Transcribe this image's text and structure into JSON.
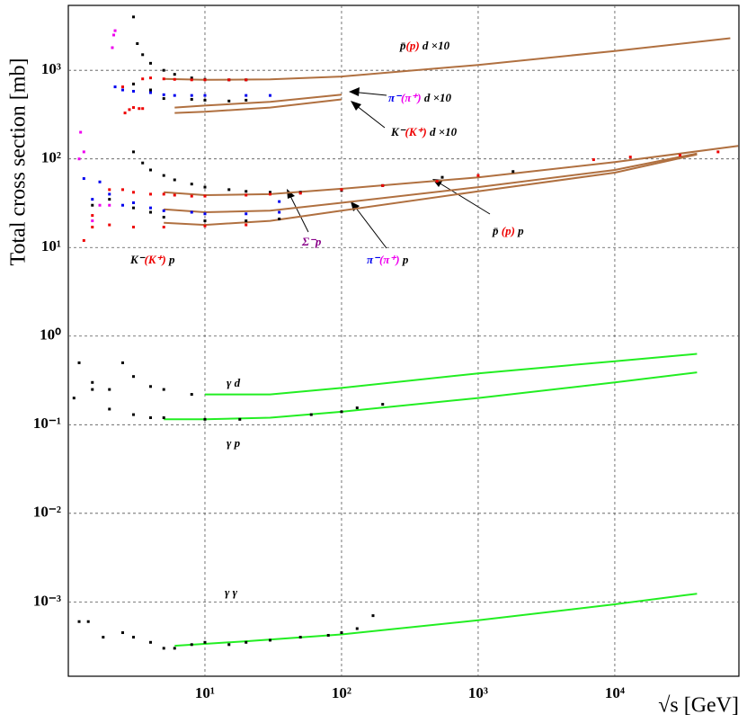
{
  "chart_data": {
    "type": "scatter",
    "x_label": "√s [GeV]",
    "y_label": "Total cross section [mb]",
    "xscale": "log",
    "yscale": "log",
    "grid": true,
    "xlim": [
      1,
      81000
    ],
    "ylim": [
      0.000145,
      5400
    ],
    "xticks": [
      {
        "value": 10,
        "label": "10¹"
      },
      {
        "value": 100,
        "label": "10²"
      },
      {
        "value": 1000,
        "label": "10³"
      },
      {
        "value": 10000,
        "label": "10⁴"
      }
    ],
    "yticks": [
      {
        "value": 0.001,
        "label": "10⁻³"
      },
      {
        "value": 0.01,
        "label": "10⁻²"
      },
      {
        "value": 0.1,
        "label": "10⁻¹"
      },
      {
        "value": 1,
        "label": "10⁰"
      },
      {
        "value": 10,
        "label": "10¹"
      },
      {
        "value": 100,
        "label": "10²"
      },
      {
        "value": 1000,
        "label": "10³"
      }
    ],
    "series": [
      {
        "mode": "line",
        "color": "#b07040",
        "x": [
          5,
          10,
          30,
          100,
          1000,
          10000,
          70000
        ],
        "values": [
          800,
          780,
          790,
          850,
          1150,
          1650,
          2300
        ]
      },
      {
        "mode": "line",
        "color": "#b07040",
        "x": [
          6,
          10,
          30,
          100
        ],
        "values": [
          380,
          400,
          440,
          530
        ]
      },
      {
        "mode": "line",
        "color": "#b07040",
        "x": [
          6,
          10,
          30,
          100
        ],
        "values": [
          330,
          340,
          380,
          470
        ]
      },
      {
        "mode": "line",
        "color": "#b07040",
        "x": [
          5,
          10,
          30,
          100,
          1000,
          10000,
          80000
        ],
        "values": [
          42,
          39,
          40,
          46,
          62,
          92,
          140
        ]
      },
      {
        "mode": "line",
        "color": "#b07040",
        "x": [
          5,
          10,
          30,
          100,
          1000,
          10000,
          40000
        ],
        "values": [
          27,
          25,
          26,
          32,
          48,
          75,
          115
        ]
      },
      {
        "mode": "line",
        "color": "#b07040",
        "x": [
          5,
          10,
          30,
          100,
          1000,
          10000,
          40000
        ],
        "values": [
          19,
          18,
          20,
          26,
          43,
          70,
          112
        ]
      },
      {
        "mode": "line",
        "color": "#22ee22",
        "x": [
          10,
          30,
          100,
          1000,
          10000,
          40000
        ],
        "values": [
          0.22,
          0.22,
          0.26,
          0.38,
          0.52,
          0.63
        ]
      },
      {
        "mode": "line",
        "color": "#22ee22",
        "x": [
          5,
          10,
          30,
          100,
          1000,
          10000,
          40000
        ],
        "values": [
          0.115,
          0.115,
          0.12,
          0.14,
          0.2,
          0.3,
          0.39
        ]
      },
      {
        "mode": "line",
        "color": "#22ee22",
        "x": [
          6,
          20,
          100,
          1000,
          10000,
          40000
        ],
        "values": [
          0.00032,
          0.00036,
          0.00043,
          0.00062,
          0.00094,
          0.00124
        ]
      },
      {
        "mode": "markers",
        "color": "#000000",
        "x": [
          3,
          3.2,
          3.5,
          4,
          5,
          6,
          8,
          10,
          15,
          20
        ],
        "values": [
          4000,
          2000,
          1500,
          1200,
          1000,
          900,
          820,
          790,
          780,
          780
        ]
      },
      {
        "mode": "markers",
        "color": "#ee0000",
        "x": [
          2.5,
          3,
          3.5,
          4,
          5,
          6,
          8,
          10,
          15,
          20
        ],
        "values": [
          650,
          700,
          800,
          820,
          800,
          790,
          780,
          780,
          780,
          780
        ]
      },
      {
        "mode": "markers",
        "color": "#ee00ee",
        "x": [
          2.1,
          2.15,
          2.2
        ],
        "values": [
          1800,
          2500,
          2800
        ]
      },
      {
        "mode": "markers",
        "color": "#0000ee",
        "x": [
          2.2,
          2.5,
          3,
          4,
          5,
          6,
          8,
          10,
          20,
          30
        ],
        "values": [
          650,
          600,
          580,
          560,
          530,
          520,
          520,
          520,
          520,
          520
        ]
      },
      {
        "mode": "markers",
        "color": "#ee0000",
        "x": [
          2.6,
          2.8,
          3,
          3.3,
          3.5
        ],
        "values": [
          330,
          360,
          380,
          370,
          370
        ]
      },
      {
        "mode": "markers",
        "color": "#000000",
        "x": [
          3,
          4,
          5,
          8,
          10,
          15,
          20
        ],
        "values": [
          700,
          600,
          480,
          470,
          460,
          450,
          460
        ]
      },
      {
        "mode": "markers",
        "color": "#000000",
        "x": [
          3,
          3.5,
          4,
          5,
          6,
          8,
          10,
          15,
          20,
          30,
          50,
          100,
          200,
          546,
          1800
        ],
        "values": [
          120,
          90,
          75,
          65,
          58,
          52,
          48,
          45,
          43,
          42,
          42,
          44,
          50,
          62,
          72
        ]
      },
      {
        "mode": "markers",
        "color": "#ee0000",
        "x": [
          1.5,
          2,
          2.5,
          3,
          4,
          5,
          6,
          8,
          10,
          20,
          30,
          50,
          100,
          200,
          500,
          1000,
          7000,
          13000,
          30000,
          57000
        ],
        "values": [
          23,
          45,
          45,
          42,
          40,
          40,
          39,
          38,
          38,
          39,
          40,
          41,
          45,
          50,
          56,
          65,
          98,
          105,
          110,
          120
        ]
      },
      {
        "mode": "markers",
        "color": "#0000ee",
        "x": [
          1.3,
          1.5,
          1.7,
          2,
          2.5,
          3,
          4,
          5,
          8,
          10,
          20,
          35
        ],
        "values": [
          60,
          35,
          55,
          40,
          30,
          32,
          28,
          26,
          25,
          24,
          24,
          25
        ]
      },
      {
        "mode": "markers",
        "color": "#ee00ee",
        "x": [
          1.2,
          1.23,
          1.3,
          1.5,
          1.7,
          2
        ],
        "values": [
          100,
          200,
          120,
          20,
          30,
          30
        ]
      },
      {
        "mode": "markers",
        "color": "#ee0000",
        "x": [
          1.3,
          1.5,
          2,
          3,
          5,
          10,
          20
        ],
        "values": [
          12,
          17,
          18,
          17,
          17,
          17.5,
          18
        ]
      },
      {
        "mode": "markers",
        "color": "#000000",
        "x": [
          1.5,
          2,
          3,
          4,
          5,
          10,
          20,
          35
        ],
        "values": [
          30,
          35,
          28,
          25,
          22,
          20,
          20,
          21
        ]
      },
      {
        "mode": "markers",
        "color": "#0000ee",
        "x": [
          35
        ],
        "values": [
          33
        ]
      },
      {
        "mode": "markers",
        "color": "#000000",
        "x": [
          1.5,
          2,
          2.5,
          3,
          4,
          5,
          8
        ],
        "values": [
          0.3,
          0.25,
          0.5,
          0.35,
          0.27,
          0.25,
          0.22
        ]
      },
      {
        "mode": "markers",
        "color": "#000000",
        "x": [
          1.1,
          1.2,
          1.5,
          2,
          3,
          4,
          5,
          10,
          18,
          60,
          100,
          130,
          200
        ],
        "values": [
          0.2,
          0.5,
          0.25,
          0.15,
          0.13,
          0.12,
          0.12,
          0.115,
          0.115,
          0.13,
          0.14,
          0.155,
          0.17
        ]
      },
      {
        "mode": "markers",
        "color": "#000000",
        "x": [
          1.2,
          1.4,
          1.8,
          2.5,
          3,
          4,
          5,
          6,
          8,
          10,
          15,
          20,
          30,
          50,
          80,
          100,
          130,
          170
        ],
        "values": [
          0.0006,
          0.0006,
          0.0004,
          0.00045,
          0.0004,
          0.00035,
          0.0003,
          0.0003,
          0.00033,
          0.00035,
          0.00033,
          0.00035,
          0.00037,
          0.0004,
          0.00042,
          0.00045,
          0.0005,
          0.0007
        ]
      }
    ],
    "annotations": [
      {
        "parts": [
          {
            "text": "p̄",
            "color": "#000000"
          },
          {
            "text": "(p)",
            "color": "#ee0000"
          },
          {
            "text": " d ×10",
            "color": "#000000"
          }
        ]
      },
      {
        "parts": [
          {
            "text": "π⁻",
            "color": "#0000ee"
          },
          {
            "text": "(π⁺)",
            "color": "#ee00ee"
          },
          {
            "text": " d ×10",
            "color": "#000000"
          }
        ]
      },
      {
        "parts": [
          {
            "text": "K⁻",
            "color": "#000000"
          },
          {
            "text": "(K⁺)",
            "color": "#ee0000"
          },
          {
            "text": " d ×10",
            "color": "#000000"
          }
        ]
      },
      {
        "parts": [
          {
            "text": "p̄",
            "color": "#000000"
          },
          {
            "text": " (p)",
            "color": "#ee0000"
          },
          {
            "text": " p",
            "color": "#000000"
          }
        ]
      },
      {
        "parts": [
          {
            "text": "Σ⁻p",
            "color": "#880088"
          }
        ]
      },
      {
        "parts": [
          {
            "text": "π⁻",
            "color": "#0000ee"
          },
          {
            "text": "(π⁺)",
            "color": "#ee00ee"
          },
          {
            "text": " p",
            "color": "#000000"
          }
        ]
      },
      {
        "parts": [
          {
            "text": "K⁻",
            "color": "#000000"
          },
          {
            "text": "(K⁺)",
            "color": "#ee0000"
          },
          {
            "text": " p",
            "color": "#000000"
          }
        ]
      },
      {
        "parts": [
          {
            "text": "γ d",
            "color": "#000000"
          }
        ]
      },
      {
        "parts": [
          {
            "text": "γ p",
            "color": "#000000"
          }
        ]
      },
      {
        "parts": [
          {
            "text": "γ γ",
            "color": "#000000"
          }
        ]
      }
    ]
  }
}
